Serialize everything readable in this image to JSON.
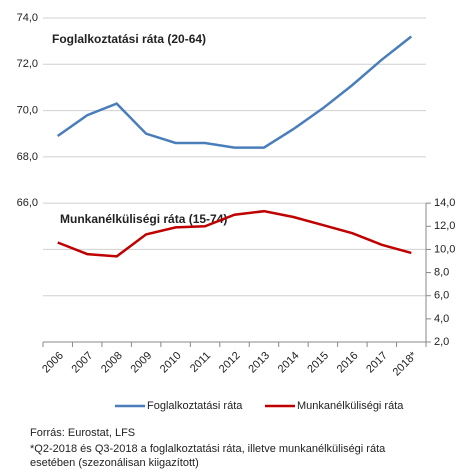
{
  "chart_data": {
    "type": "line",
    "annotations": [
      "Foglalkoztatási ráta (20-64)",
      "Munkanélküliségi ráta (15-74)"
    ],
    "categories": [
      "2006",
      "2007",
      "2008",
      "2009",
      "2010",
      "2011",
      "2012",
      "2013",
      "2014",
      "2015",
      "2016",
      "2017",
      "2018*"
    ],
    "series": [
      {
        "name": "Foglalkoztatási ráta",
        "color": "#4a7ebb",
        "axis": "y",
        "values": [
          68.9,
          69.8,
          70.3,
          69.0,
          68.6,
          68.6,
          68.4,
          68.4,
          69.2,
          70.1,
          71.1,
          72.2,
          73.2
        ]
      },
      {
        "name": "Munkanélküliségi ráta",
        "color": "#c00000",
        "axis": "y2",
        "values": [
          10.6,
          9.6,
          9.4,
          11.3,
          11.9,
          12.0,
          13.0,
          13.3,
          12.8,
          12.1,
          11.4,
          10.4,
          9.7
        ]
      }
    ],
    "ylim": [
      60,
      74
    ],
    "yticks": [
      {
        "value": 66,
        "label": "66,0"
      },
      {
        "value": 68,
        "label": "68,0"
      },
      {
        "value": 70,
        "label": "70,0"
      },
      {
        "value": 72,
        "label": "72,0"
      },
      {
        "value": 74,
        "label": "74,0"
      }
    ],
    "y2lim": [
      2,
      14
    ],
    "y2ticks": [
      {
        "value": 2,
        "label": "2,0"
      },
      {
        "value": 4,
        "label": "4,0"
      },
      {
        "value": 6,
        "label": "6,0"
      },
      {
        "value": 8,
        "label": "8,0"
      },
      {
        "value": 10,
        "label": "10,0"
      },
      {
        "value": 12,
        "label": "12,0"
      },
      {
        "value": 14,
        "label": "14,0"
      }
    ],
    "grid": true,
    "legend": "bottom",
    "source": "Forrás: Eurostat, LFS",
    "notes": [
      "*Q2-2018 és Q3-2018 a foglalkoztatási ráta, illetve munkanélküliségi ráta",
      "esetében (szezonálisan kiigazított)"
    ]
  }
}
